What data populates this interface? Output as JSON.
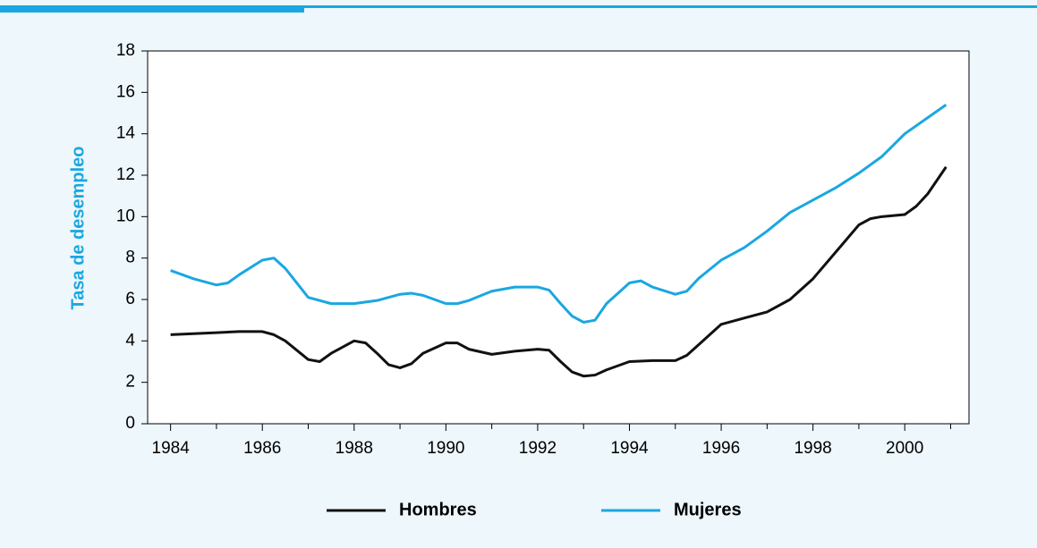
{
  "chart_data": {
    "type": "line",
    "y_label": "Tasa de desempleo",
    "xlim": [
      1983.5,
      2001.4
    ],
    "ylim": [
      0,
      18
    ],
    "xticks": [
      1984,
      1986,
      1988,
      1990,
      1992,
      1994,
      1996,
      1998,
      2000
    ],
    "xminorticks": [
      1985,
      1987,
      1989,
      1991,
      1993,
      1995,
      1997,
      1999,
      2001
    ],
    "yticks": [
      0,
      2,
      4,
      6,
      8,
      10,
      12,
      14,
      16,
      18
    ],
    "legend": "bottom",
    "series": [
      {
        "name": "Hombres",
        "color": "#111111",
        "x": [
          1984,
          1984.5,
          1985,
          1985.5,
          1986,
          1986.25,
          1986.5,
          1987,
          1987.25,
          1987.5,
          1988,
          1988.25,
          1988.5,
          1988.75,
          1989,
          1989.25,
          1989.5,
          1990,
          1990.25,
          1990.5,
          1991,
          1991.5,
          1992,
          1992.25,
          1992.5,
          1992.75,
          1993,
          1993.25,
          1993.5,
          1994,
          1994.5,
          1995,
          1995.25,
          1995.5,
          1996,
          1996.5,
          1997,
          1997.5,
          1998,
          1998.5,
          1999,
          1999.25,
          1999.5,
          2000,
          2000.25,
          2000.5,
          2000.9
        ],
        "values": [
          4.3,
          4.35,
          4.4,
          4.45,
          4.45,
          4.3,
          4.0,
          3.1,
          3.0,
          3.4,
          4.0,
          3.9,
          3.4,
          2.85,
          2.7,
          2.9,
          3.4,
          3.9,
          3.9,
          3.6,
          3.35,
          3.5,
          3.6,
          3.55,
          3.0,
          2.5,
          2.3,
          2.35,
          2.6,
          3.0,
          3.05,
          3.05,
          3.3,
          3.8,
          4.8,
          5.1,
          5.4,
          6.0,
          7.0,
          8.3,
          9.6,
          9.9,
          10.0,
          10.1,
          10.5,
          11.1,
          12.4
        ]
      },
      {
        "name": "Mujeres",
        "color": "#1aa7e1",
        "x": [
          1984,
          1984.5,
          1985,
          1985.25,
          1985.5,
          1986,
          1986.25,
          1986.5,
          1986.75,
          1987,
          1987.5,
          1988,
          1988.5,
          1989,
          1989.25,
          1989.5,
          1990,
          1990.25,
          1990.5,
          1991,
          1991.5,
          1992,
          1992.25,
          1992.5,
          1992.75,
          1993,
          1993.25,
          1993.5,
          1994,
          1994.25,
          1994.5,
          1995,
          1995.25,
          1995.5,
          1996,
          1996.5,
          1997,
          1997.5,
          1998,
          1998.5,
          1999,
          1999.5,
          2000,
          2000.9
        ],
        "values": [
          7.4,
          7.0,
          6.7,
          6.8,
          7.2,
          7.9,
          8.0,
          7.5,
          6.8,
          6.1,
          5.8,
          5.8,
          5.95,
          6.25,
          6.3,
          6.2,
          5.8,
          5.8,
          5.95,
          6.4,
          6.6,
          6.6,
          6.45,
          5.8,
          5.2,
          4.9,
          5.0,
          5.8,
          6.8,
          6.9,
          6.6,
          6.25,
          6.4,
          7.0,
          7.9,
          8.5,
          9.3,
          10.2,
          10.8,
          11.4,
          12.1,
          12.9,
          14.0,
          15.4
        ]
      }
    ]
  }
}
